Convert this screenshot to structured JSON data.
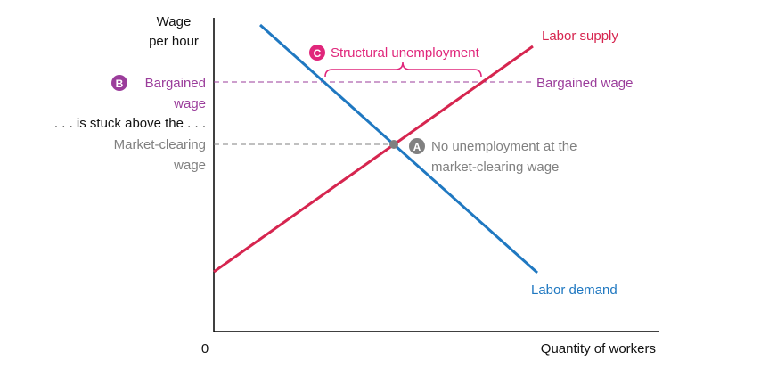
{
  "axes": {
    "y_title_line1": "Wage",
    "y_title_line2": "per hour",
    "x_title": "Quantity of workers",
    "origin": "0"
  },
  "left_labels": {
    "bargained_marker": "B",
    "bargained_line1": "Bargained",
    "bargained_line2": "wage",
    "stuck_text": ". . . is stuck above the . . .",
    "market_line1": "Market-clearing",
    "market_line2": "wage"
  },
  "curves": {
    "supply_label": "Labor supply",
    "demand_label": "Labor demand"
  },
  "annotations": {
    "bargained_wage_right": "Bargained wage",
    "point_a_marker": "A",
    "point_a_line1": "No unemployment at the",
    "point_a_line2": "market-clearing wage",
    "structural_marker": "C",
    "structural_label": "Structural unemployment"
  },
  "colors": {
    "supply": "#d6254f",
    "demand": "#1f78c1",
    "bargained": "#9b3d9b",
    "market": "#808080",
    "structural": "#e0267b",
    "axis": "#000000"
  }
}
